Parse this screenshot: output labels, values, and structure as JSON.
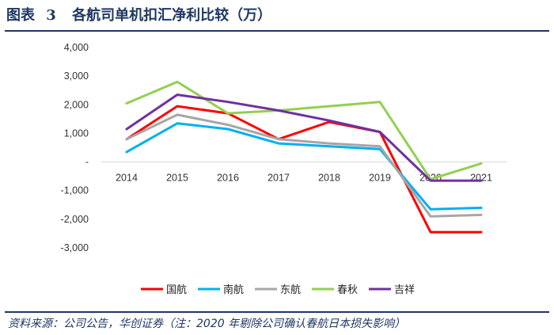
{
  "header": {
    "figure_label": "图表",
    "figure_number": "3",
    "title": "各航司单机扣汇净利比较（万）"
  },
  "footer": {
    "source": "资料来源：公司公告，华创证券（注：2020 年剔除公司确认春航日本损失影响）"
  },
  "chart_data": {
    "type": "line",
    "title": "各航司单机扣汇净利比较（万）",
    "xlabel": "",
    "ylabel": "",
    "categories": [
      "2014",
      "2015",
      "2016",
      "2017",
      "2018",
      "2019",
      "2020",
      "2021"
    ],
    "ylim": [
      -3000,
      4000
    ],
    "yticks": [
      4000,
      3000,
      2000,
      1000,
      0,
      -1000,
      -2000,
      -3000
    ],
    "ytick_labels": [
      "4,000",
      "3,000",
      "2,000",
      "1,000",
      "-",
      "-1,000",
      "-2,000",
      "-3,000"
    ],
    "grid": false,
    "legend_position": "bottom",
    "series": [
      {
        "name": "国航",
        "color": "#ff0000",
        "values": [
          800,
          1950,
          1700,
          800,
          1400,
          1050,
          -2450,
          -2450
        ]
      },
      {
        "name": "南航",
        "color": "#00b0f0",
        "values": [
          350,
          1350,
          1150,
          650,
          550,
          450,
          -1650,
          -1600
        ]
      },
      {
        "name": "东航",
        "color": "#a6a6a6",
        "values": [
          800,
          1650,
          1300,
          800,
          650,
          550,
          -1900,
          -1850
        ]
      },
      {
        "name": "春秋",
        "color": "#92d050",
        "values": [
          2050,
          2800,
          1700,
          1800,
          1950,
          2100,
          -600,
          -50
        ]
      },
      {
        "name": "吉祥",
        "color": "#7030a0",
        "values": [
          1150,
          2350,
          2100,
          1800,
          1450,
          1050,
          -650,
          -650
        ]
      }
    ]
  }
}
